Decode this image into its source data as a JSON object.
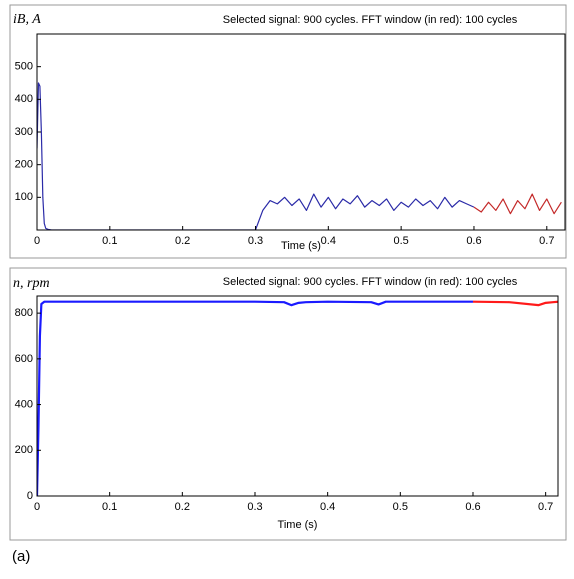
{
  "chart_data": [
    {
      "type": "line",
      "title": "Selected signal: 900 cycles. FFT window (in red): 100 cycles",
      "ylabel": "iB, A",
      "xlabel": "Time (s)",
      "x": [
        0,
        0.002,
        0.004,
        0.006,
        0.008,
        0.01,
        0.012,
        0.015,
        0.02,
        0.1,
        0.2,
        0.3,
        0.31,
        0.32,
        0.33,
        0.34,
        0.35,
        0.36,
        0.37,
        0.38,
        0.39,
        0.4,
        0.41,
        0.42,
        0.43,
        0.44,
        0.45,
        0.46,
        0.47,
        0.48,
        0.49,
        0.5,
        0.51,
        0.52,
        0.53,
        0.54,
        0.55,
        0.56,
        0.57,
        0.58,
        0.59,
        0.6,
        0.61,
        0.62,
        0.63,
        0.64,
        0.65,
        0.66,
        0.67,
        0.68,
        0.69,
        0.7,
        0.71,
        0.72
      ],
      "series": [
        {
          "name": "Selected signal",
          "color": "#2b2ba8",
          "values": [
            250,
            450,
            440,
            300,
            100,
            20,
            5,
            2,
            0,
            0,
            0,
            0,
            60,
            90,
            80,
            100,
            75,
            95,
            60,
            110,
            70,
            100,
            65,
            95,
            80,
            105,
            70,
            90,
            75,
            95,
            60,
            85,
            70,
            95,
            75,
            90,
            65,
            100,
            70,
            90,
            80,
            70,
            null,
            null,
            null,
            null,
            null,
            null,
            null,
            null,
            null,
            null,
            null,
            null
          ]
        },
        {
          "name": "FFT window",
          "color": "#c42a2a",
          "values": [
            null,
            null,
            null,
            null,
            null,
            null,
            null,
            null,
            null,
            null,
            null,
            null,
            null,
            null,
            null,
            null,
            null,
            null,
            null,
            null,
            null,
            null,
            null,
            null,
            null,
            null,
            null,
            null,
            null,
            null,
            null,
            null,
            null,
            null,
            null,
            null,
            null,
            null,
            null,
            null,
            null,
            70,
            55,
            85,
            60,
            95,
            50,
            90,
            65,
            110,
            60,
            95,
            50,
            85
          ]
        }
      ],
      "xlim": [
        0,
        0.725
      ],
      "ylim": [
        0,
        600
      ],
      "xticks": [
        0,
        0.1,
        0.2,
        0.3,
        0.4,
        0.5,
        0.6,
        0.7
      ],
      "yticks": [
        100,
        200,
        300,
        400,
        500
      ]
    },
    {
      "type": "line",
      "title": "Selected signal: 900 cycles. FFT window (in red): 100 cycles",
      "ylabel": "n, rpm",
      "xlabel": "Time (s)",
      "x": [
        0,
        0.002,
        0.004,
        0.006,
        0.01,
        0.05,
        0.1,
        0.2,
        0.3,
        0.34,
        0.35,
        0.36,
        0.37,
        0.4,
        0.46,
        0.47,
        0.48,
        0.55,
        0.6,
        0.65,
        0.69,
        0.7,
        0.71,
        0.717
      ],
      "series": [
        {
          "name": "Selected signal",
          "color": "#1a1aff",
          "values": [
            0,
            300,
            700,
            840,
            850,
            850,
            850,
            850,
            850,
            848,
            835,
            845,
            848,
            850,
            848,
            838,
            850,
            850,
            850,
            null,
            null,
            null,
            null,
            null
          ]
        },
        {
          "name": "FFT window",
          "color": "#ff1a1a",
          "values": [
            null,
            null,
            null,
            null,
            null,
            null,
            null,
            null,
            null,
            null,
            null,
            null,
            null,
            null,
            null,
            null,
            null,
            null,
            850,
            848,
            835,
            845,
            848,
            850
          ]
        }
      ],
      "xlim": [
        0,
        0.717
      ],
      "ylim": [
        0,
        875
      ],
      "xticks": [
        0,
        0.1,
        0.2,
        0.3,
        0.4,
        0.5,
        0.6,
        0.7
      ],
      "yticks": [
        0,
        200,
        400,
        600,
        800
      ]
    }
  ],
  "caption": "(a)"
}
